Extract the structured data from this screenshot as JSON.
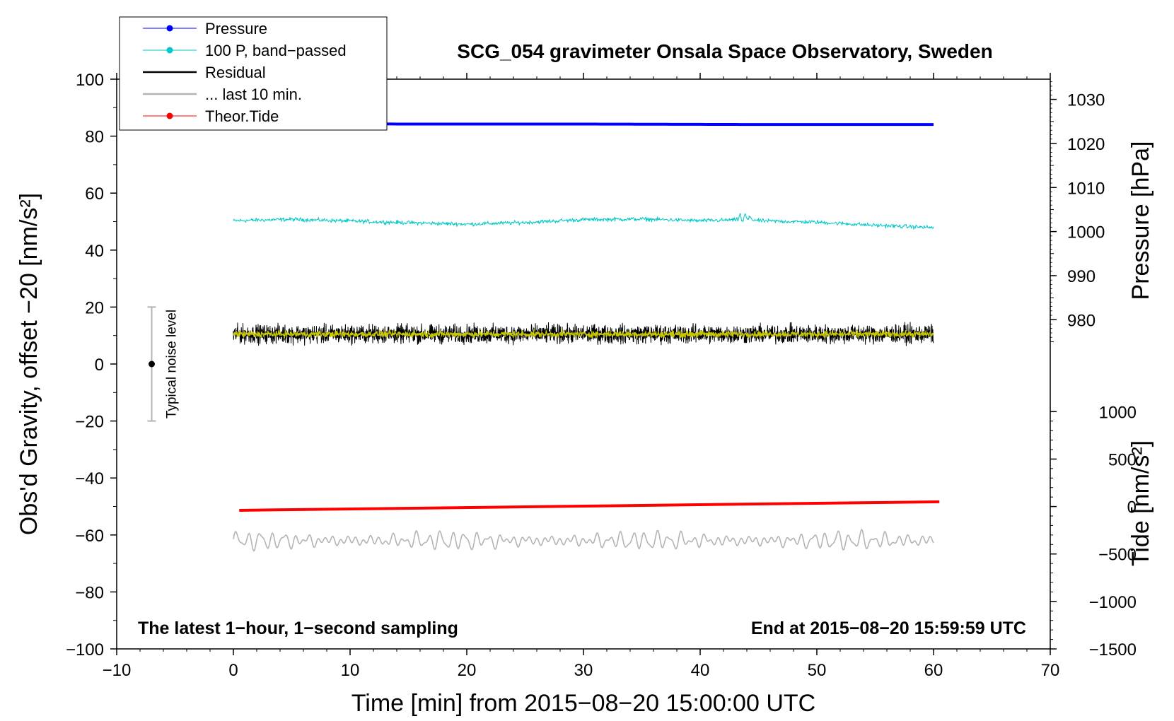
{
  "chart_data": {
    "type": "line",
    "title": "SCG_054 gravimeter Onsala Space Observatory, Sweden",
    "xlabel": "Time [min] from 2015−08−20 15:00:00 UTC",
    "ylabel": "Obs'd Gravity, offset −20 [nm/s²]",
    "xlim": [
      -10,
      70
    ],
    "ylim": [
      -100,
      100
    ],
    "x_ticks": [
      -10,
      0,
      10,
      20,
      30,
      40,
      50,
      60,
      70
    ],
    "x_tick_labels": [
      "−10",
      "0",
      "10",
      "20",
      "30",
      "40",
      "50",
      "60",
      "70"
    ],
    "y_ticks": [
      -100,
      -80,
      -60,
      -40,
      -20,
      0,
      20,
      40,
      60,
      80,
      100
    ],
    "y_tick_labels": [
      "−100",
      "−80",
      "−60",
      "−40",
      "−20",
      "0",
      "20",
      "40",
      "60",
      "80",
      "100"
    ],
    "right_axis_pressure": {
      "label": "Pressure [hPa]",
      "ticks": [
        980,
        990,
        1000,
        1010,
        1020,
        1030
      ],
      "tick_labels": [
        "980",
        "990",
        "1000",
        "1010",
        "1020",
        "1030"
      ],
      "map_ref": [
        [
          1000,
          46.5
        ],
        [
          1030,
          92.9
        ]
      ]
    },
    "right_axis_tide": {
      "label": "Tide [nm/s²]",
      "ticks": [
        -1500,
        -1000,
        -500,
        0,
        500,
        1000
      ],
      "tick_labels": [
        "−1500",
        "−1000",
        "−500",
        "0",
        "500",
        "1000"
      ],
      "map_ref": [
        [
          -1500,
          -100
        ],
        [
          1000,
          -16.7
        ]
      ]
    },
    "annotations": {
      "left": "The latest 1−hour, 1−second sampling",
      "right": "End at 2015−08−20 15:59:59 UTC"
    },
    "noise_level": {
      "label": "Typical noise level",
      "x": -7,
      "center": 0,
      "low": -20,
      "high": 20
    },
    "legend": [
      {
        "label": "Pressure",
        "color": "#0000ff",
        "marker": true
      },
      {
        "label": "100 P, band−passed",
        "color": "#00c8c8",
        "marker": true
      },
      {
        "label": "Residual",
        "color": "#000000",
        "marker": false
      },
      {
        "label": "... last 10 min.",
        "color": "#b4b4b4",
        "marker": false
      },
      {
        "label": "Theor.Tide",
        "color": "#ff0000",
        "marker": true
      }
    ],
    "series": [
      {
        "name": "Pressure",
        "axis": "pressure_hPa",
        "color": "#0000ff",
        "x_range": [
          0,
          60
        ],
        "points": [
          [
            0,
            1024.6
          ],
          [
            15,
            1024.4
          ],
          [
            30,
            1024.4
          ],
          [
            45,
            1024.3
          ],
          [
            60,
            1024.3
          ]
        ]
      },
      {
        "name": "100 P, band−passed",
        "axis": "gravity",
        "color": "#00c8c8",
        "x_range": [
          0,
          60
        ],
        "points": [
          [
            0,
            50.3
          ],
          [
            5,
            50.8
          ],
          [
            10,
            50.2
          ],
          [
            15,
            49.6
          ],
          [
            20,
            49.1
          ],
          [
            25,
            49.7
          ],
          [
            30,
            50.7
          ],
          [
            35,
            50.9
          ],
          [
            40,
            50.3
          ],
          [
            43,
            50.6
          ],
          [
            44,
            51.5
          ],
          [
            45,
            50.3
          ],
          [
            50,
            49.8
          ],
          [
            55,
            48.7
          ],
          [
            60,
            47.9
          ]
        ],
        "noise": 0.6
      },
      {
        "name": "Residual",
        "axis": "gravity",
        "color": "#000000",
        "x_range": [
          0,
          60
        ],
        "mean": 10.5,
        "noise": 2.7
      },
      {
        "name": "Residual smoothed",
        "axis": "gravity",
        "color": "#c8c800",
        "x_range": [
          0,
          60
        ],
        "mean": 10.5,
        "noise": 0.9
      },
      {
        "name": "... last 10 min.",
        "axis": "gravity",
        "color": "#b4b4b4",
        "x_range": [
          0,
          60
        ],
        "mean": -62,
        "amplitude": 2.2
      },
      {
        "name": "Theor.Tide",
        "axis": "tide_nms2",
        "color": "#ff0000",
        "x_range": [
          0.5,
          60.5
        ],
        "points": [
          [
            0.5,
            -40
          ],
          [
            60.5,
            50
          ]
        ]
      }
    ]
  }
}
